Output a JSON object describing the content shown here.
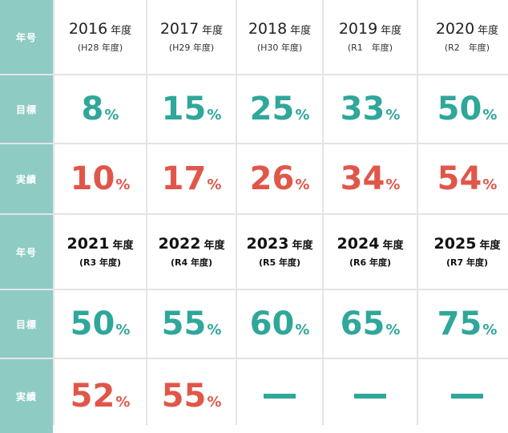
{
  "labels": {
    "year": "年号",
    "target": "目標",
    "result": "実績"
  },
  "unit": "%",
  "nendo_suffix": "年度",
  "block1": {
    "years": [
      {
        "year": "2016",
        "era": "(H28 年度)"
      },
      {
        "year": "2017",
        "era": "(H29 年度)"
      },
      {
        "year": "2018",
        "era": "(H30 年度)"
      },
      {
        "year": "2019",
        "era": "(R1　年度)"
      },
      {
        "year": "2020",
        "era": "(R2　年度)"
      }
    ],
    "targets": [
      "8",
      "15",
      "25",
      "33",
      "50"
    ],
    "results": [
      "10",
      "17",
      "26",
      "34",
      "54"
    ]
  },
  "block2": {
    "years": [
      {
        "year": "2021",
        "era": "(R3 年度)"
      },
      {
        "year": "2022",
        "era": "(R4 年度)"
      },
      {
        "year": "2023",
        "era": "(R5 年度)"
      },
      {
        "year": "2024",
        "era": "(R6 年度)"
      },
      {
        "year": "2025",
        "era": "(R7 年度)"
      }
    ],
    "targets": [
      "50",
      "55",
      "60",
      "65",
      "75"
    ],
    "results": [
      "52",
      "55",
      null,
      null,
      null
    ]
  },
  "colors": {
    "header_bg": "#8ecbc3",
    "target_text": "#2fa79a",
    "result_text": "#e0574a",
    "dash": "#2fa79a"
  }
}
